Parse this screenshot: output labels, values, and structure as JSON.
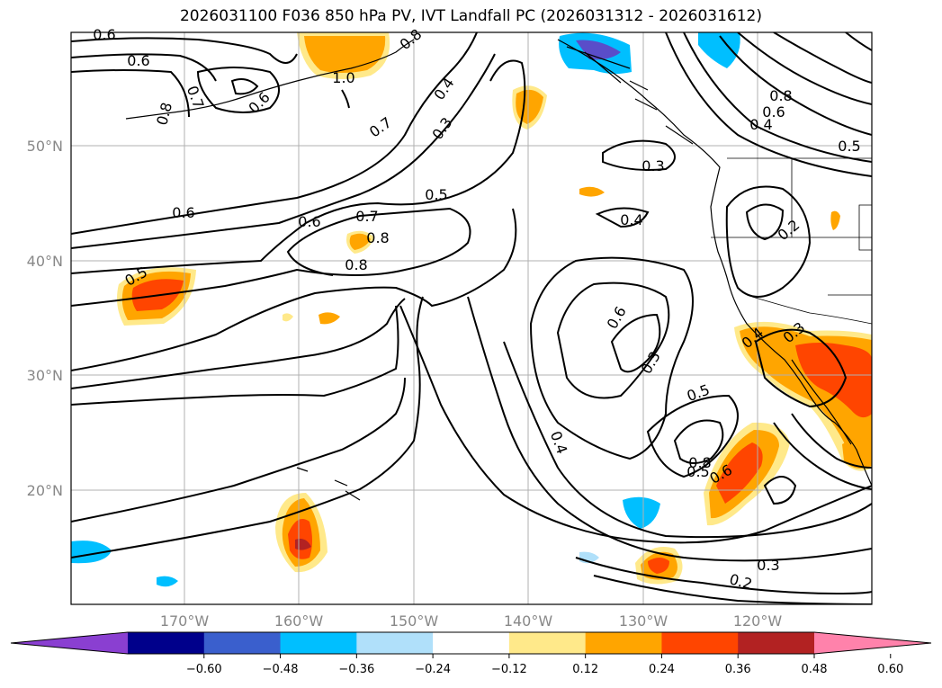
{
  "title": "2026031100 F036 850 hPa PV, IVT Landfall PC (2026031312 - 2026031612)",
  "lat_labels": [
    "50°N",
    "40°N",
    "30°N",
    "20°N"
  ],
  "lon_labels": [
    "170°W",
    "160°W",
    "150°W",
    "140°W",
    "130°W",
    "120°W"
  ],
  "contour_labels": [
    "0.6",
    "0.6",
    "0.7",
    "0.8",
    "0.6",
    "1.0",
    "0.8",
    "0.8",
    "0.4",
    "0.3",
    "0.7",
    "0.5",
    "0.6",
    "0.6",
    "0.7",
    "0.8",
    "0.3",
    "0.4",
    "0.8",
    "0.6",
    "0.4",
    "0.5",
    "0.2",
    "0.5",
    "0.4",
    "0.3",
    "0.6",
    "0.3",
    "0.5",
    "0.8",
    "0.6",
    "0.4",
    "0.3",
    "0.2",
    "0.5"
  ],
  "colorbar": {
    "ticks": [
      "−0.60",
      "−0.48",
      "−0.36",
      "−0.24",
      "−0.12",
      "0.12",
      "0.24",
      "0.36",
      "0.48",
      "0.60"
    ],
    "colors": [
      "#8a3fd1",
      "#00008b",
      "#3a5fcd",
      "#00bfff",
      "#b0e0fa",
      "#ffffff",
      "#ffe98a",
      "#ffa500",
      "#ff4500",
      "#b22222",
      "#ff82ab"
    ]
  }
}
